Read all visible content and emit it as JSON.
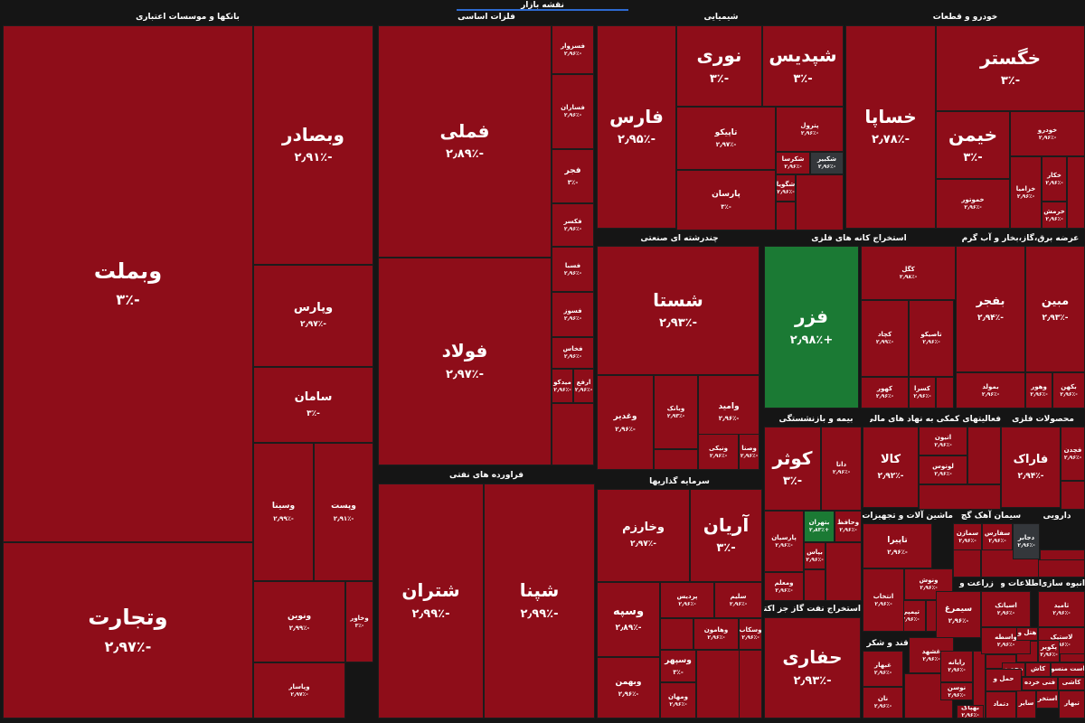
{
  "app_title": "نقشه بازار",
  "colors": {
    "negative": "#8e0d19",
    "positive": "#1b7a34",
    "neutral": "#34373b",
    "background": "#151515",
    "accent": "#2d6ad1"
  },
  "sectors": {
    "banks": "بانکها و موسسات اعتباری",
    "metals": "فلزات اساسی",
    "chemical": "شیمیایی",
    "auto": "خودرو و قطعات",
    "oil_products": "فراورده های نفتی",
    "industrial": "چندرشته ای صنعتی",
    "mining": "استخراج کانه های فلزی",
    "utilities": "عرضه برق،گاز،بخار و آب گرم",
    "investment": "سرمایه گذاریها",
    "insurance": "بیمه و بازنشستگی",
    "auxiliary": "فعالیتهای کمکی به نهاد های مالی",
    "metal_products": "محصولات فلزی",
    "machinery": "ماشین آلات و تجهیزات",
    "cement": "سیمان آهک گچ",
    "pharma": "دارویی",
    "oil_gas_ext": "استخراج نفت گاز جز اکتشاف",
    "agriculture": "زراعت و",
    "info": "اطلاعات و",
    "tiles": "انبوه سازی",
    "food": "غذایی بجز قند و شکر"
  },
  "tiles": {
    "vbmellat": {
      "name": "وبملت",
      "pct": "-۳٪"
    },
    "vtejarat": {
      "name": "وتجارت",
      "pct": "-۲٫۹۷٪"
    },
    "vbsader": {
      "name": "وبصادر",
      "pct": "-۲٫۹۱٪"
    },
    "vpars": {
      "name": "وپارس",
      "pct": "-۲٫۹۷٪"
    },
    "saman": {
      "name": "سامان",
      "pct": "-۳٪"
    },
    "vsina": {
      "name": "وسینا",
      "pct": "-۲٫۹۹٪"
    },
    "vpost": {
      "name": "وپست",
      "pct": "-۲٫۹۱٪"
    },
    "vnovin": {
      "name": "ونوین",
      "pct": "-۲٫۹۹٪"
    },
    "vkhavar": {
      "name": "وخاور",
      "pct": "-۳٪"
    },
    "vpasar": {
      "name": "وپاسار",
      "pct": "-۲٫۹۷٪"
    },
    "fameli": {
      "name": "فملی",
      "pct": "-۲٫۸۹٪"
    },
    "foolad": {
      "name": "فولاد",
      "pct": "-۲٫۹۷٪"
    },
    "fsazvar": {
      "name": "فسزوار",
      "pct": "-۲٫۹۶٪"
    },
    "fsaran": {
      "name": "فساران",
      "pct": "-۲٫۹۶٪"
    },
    "fajr": {
      "name": "فجر",
      "pct": "-۳٪"
    },
    "faksar": {
      "name": "فکسر",
      "pct": "-۲٫۹۶٪"
    },
    "fasba": {
      "name": "فسبا",
      "pct": "-۲٫۹۶٪"
    },
    "fsoz": {
      "name": "فسوز",
      "pct": "-۲٫۹۶٪"
    },
    "fkhas": {
      "name": "فخاس",
      "pct": "-۲٫۹۶٪"
    },
    "midko": {
      "name": "میدکو",
      "pct": "-۲٫۹۶٪"
    },
    "arfa": {
      "name": "ارفع",
      "pct": "-۲٫۹۶٪"
    },
    "faras": {
      "name": "فارس",
      "pct": "-۲٫۹۵٪"
    },
    "noori": {
      "name": "نوری",
      "pct": "-۳٪"
    },
    "shepdis": {
      "name": "شپدیس",
      "pct": "-۳٪"
    },
    "tapiko": {
      "name": "تاپیکو",
      "pct": "-۲٫۹۷٪"
    },
    "petrol": {
      "name": "پترول",
      "pct": "-۲٫۹۶٪"
    },
    "parsan": {
      "name": "پارسان",
      "pct": "-۳٪"
    },
    "shakras": {
      "name": "شکرسا",
      "pct": "-۲٫۹۶٪"
    },
    "shakbir": {
      "name": "شکبیر",
      "pct": "-۲٫۹۶٪"
    },
    "shgooya": {
      "name": "شگویا",
      "pct": "-۲٫۹۶٪"
    },
    "khsapa": {
      "name": "خساپا",
      "pct": "-۲٫۷۸٪"
    },
    "khgostar": {
      "name": "خگستر",
      "pct": "-۳٪"
    },
    "khimen": {
      "name": "خیمن",
      "pct": "-۳٪"
    },
    "khodro": {
      "name": "خودرو",
      "pct": "-۲٫۹۶٪"
    },
    "khmotor": {
      "name": "خموتور",
      "pct": "-۲٫۹۶٪"
    },
    "khzamia": {
      "name": "خزامیا",
      "pct": "-۲٫۹۶٪"
    },
    "khkar": {
      "name": "خکار",
      "pct": "-۲٫۹۶٪"
    },
    "khramsh": {
      "name": "خرمش",
      "pct": "-۲٫۹۶٪"
    },
    "shesta": {
      "name": "شستا",
      "pct": "-۲٫۹۳٪"
    },
    "vamid": {
      "name": "وامید",
      "pct": "-۲٫۹۶٪"
    },
    "vbank": {
      "name": "وبانک",
      "pct": "-۲٫۹۳٪"
    },
    "vghadir": {
      "name": "وغدیر",
      "pct": "-۲٫۹۶٪"
    },
    "vniki": {
      "name": "ونیکی",
      "pct": "-۲٫۹۶٪"
    },
    "vsakhat": {
      "name": "وصنا",
      "pct": "-۲٫۹۶٪"
    },
    "fazar": {
      "name": "فزر",
      "pct": "+۲٫۹۸٪"
    },
    "kegol": {
      "name": "کگل",
      "pct": "-۲٫۹۸٪"
    },
    "kchad": {
      "name": "کچاد",
      "pct": "-۲٫۹۹٪"
    },
    "tapiko2": {
      "name": "تاصیکو",
      "pct": "-۲٫۹۶٪"
    },
    "kahor": {
      "name": "کهور",
      "pct": "-۲٫۹۶٪"
    },
    "ksaro": {
      "name": "کسرا",
      "pct": "-۲٫۹۶٪"
    },
    "bfajr": {
      "name": "بفجر",
      "pct": "-۲٫۹۴٪"
    },
    "mobin": {
      "name": "مبین",
      "pct": "-۲٫۹۳٪"
    },
    "bmolad": {
      "name": "بمولد",
      "pct": "-۲٫۹۶٪"
    },
    "vahor": {
      "name": "وهور",
      "pct": "-۲٫۹۶٪"
    },
    "bkhas": {
      "name": "بکهن",
      "pct": "-۲٫۹۶٪"
    },
    "shatran": {
      "name": "شتران",
      "pct": "-۲٫۹۹٪"
    },
    "shepna": {
      "name": "شپنا",
      "pct": "-۲٫۹۹٪"
    },
    "vkharazm": {
      "name": "وخارزم",
      "pct": "-۲٫۹۷٪"
    },
    "arian": {
      "name": "آریان",
      "pct": "-۳٪"
    },
    "vsepah": {
      "name": "وسپه",
      "pct": "-۲٫۸۹٪"
    },
    "vbahman": {
      "name": "وبهمن",
      "pct": "-۲٫۹۶٪"
    },
    "pardis": {
      "name": "پردیس",
      "pct": "-۲٫۹۶٪"
    },
    "salim": {
      "name": "سلیم",
      "pct": "-۲٫۹۶٪"
    },
    "vahamun": {
      "name": "وهامون",
      "pct": "-۲٫۹۶٪"
    },
    "vsakab": {
      "name": "وسکاب",
      "pct": "-۲٫۹۶٪"
    },
    "vsipehr": {
      "name": "وسپهر",
      "pct": "-۳٪"
    },
    "vmahan": {
      "name": "ومهان",
      "pct": "-۲٫۹۶٪"
    },
    "kosar": {
      "name": "کوثر",
      "pct": "-۳٪"
    },
    "dana": {
      "name": "دانا",
      "pct": "-۲٫۹۶٪"
    },
    "kala": {
      "name": "کالا",
      "pct": "-۲٫۹۲٪"
    },
    "atiyeh": {
      "name": "اتیون",
      "pct": "-۲٫۹۶٪"
    },
    "lotus": {
      "name": "لوتوس",
      "pct": "-۲٫۹۶٪"
    },
    "farak": {
      "name": "فاراک",
      "pct": "-۲٫۹۴٪"
    },
    "fchad": {
      "name": "فچدن",
      "pct": "-۲٫۹۶٪"
    },
    "parsian": {
      "name": "پارسیان",
      "pct": "-۲٫۹۶٪"
    },
    "btehran": {
      "name": "بتهران",
      "pct": "+۲٫۸۳٪"
    },
    "vhafez": {
      "name": "وحافظ",
      "pct": "-۲٫۹۶٪"
    },
    "bpas": {
      "name": "بپاس",
      "pct": "-۲٫۹۶٪"
    },
    "vmalem": {
      "name": "ومعلم",
      "pct": "-۲٫۹۶٪"
    },
    "hafari": {
      "name": "حفاری",
      "pct": "-۲٫۹۳٪"
    },
    "tapira": {
      "name": "تاپیرا",
      "pct": "-۲٫۹۶٪"
    },
    "vantoosh": {
      "name": "ونوش",
      "pct": "-۲٫۹۶٪"
    },
    "tasbi": {
      "name": "تپمپی",
      "pct": "-۲٫۹۶٪"
    },
    "entekhab": {
      "name": "انتخاب",
      "pct": "-۲٫۹۶٪"
    },
    "gheshad": {
      "name": "غشهد",
      "pct": "-۲٫۹۶٪"
    },
    "gbahar": {
      "name": "غبهار",
      "pct": "-۲٫۹۶٪"
    },
    "ghnab": {
      "name": "غنان",
      "pct": "-۲٫۹۶٪"
    },
    "semazand": {
      "name": "سمازن",
      "pct": "-۲٫۹۶٪"
    },
    "dajaber": {
      "name": "دجابر",
      "pct": "-۲٫۹۶٪"
    },
    "sfars": {
      "name": "سفارس",
      "pct": "-۲٫۹۶٪"
    },
    "siman": {
      "name": "سیمرغ",
      "pct": "-۲٫۹۶٪"
    },
    "asiatek": {
      "name": "اسیاتک",
      "pct": "-۲٫۹۶٪"
    },
    "vasate": {
      "name": "واسطه",
      "pct": "-۲٫۹۶٪"
    },
    "tamid": {
      "name": "ثامید",
      "pct": "-۲٫۹۶٪"
    },
    "zarin": {
      "name": "رایانه",
      "pct": "-۲٫۹۶٪"
    },
    "hotel": {
      "name": "هتل و",
      "pct": ""
    },
    "lastik": {
      "name": "لاستیک",
      "pct": "-۲٫۹۶٪"
    },
    "pkavir": {
      "name": "پکویر",
      "pct": "-۲٫۹۶٪"
    },
    "mahsoul": {
      "name": "محصو",
      "pct": ""
    },
    "kala2": {
      "name": "کاش",
      "pct": ""
    },
    "hamloughal": {
      "name": "حمل و",
      "pct": ""
    },
    "ostmansour": {
      "name": "است منسو",
      "pct": ""
    },
    "fani": {
      "name": "فنی خرده",
      "pct": ""
    },
    "kashi": {
      "name": "کاشی",
      "pct": ""
    },
    "sayer": {
      "name": "سایر",
      "pct": ""
    },
    "estakhr": {
      "name": "استخر",
      "pct": ""
    },
    "noos": {
      "name": "نوسن",
      "pct": "-۲٫۹۶٪"
    },
    "nan": {
      "name": "نان",
      "pct": "-۲٫۹۶٪"
    },
    "bahs": {
      "name": "بهپاک",
      "pct": "-۲٫۹۶٪"
    },
    "tbahar": {
      "name": "تبهار",
      "pct": ""
    },
    "dtokal": {
      "name": "دتماد",
      "pct": ""
    }
  }
}
